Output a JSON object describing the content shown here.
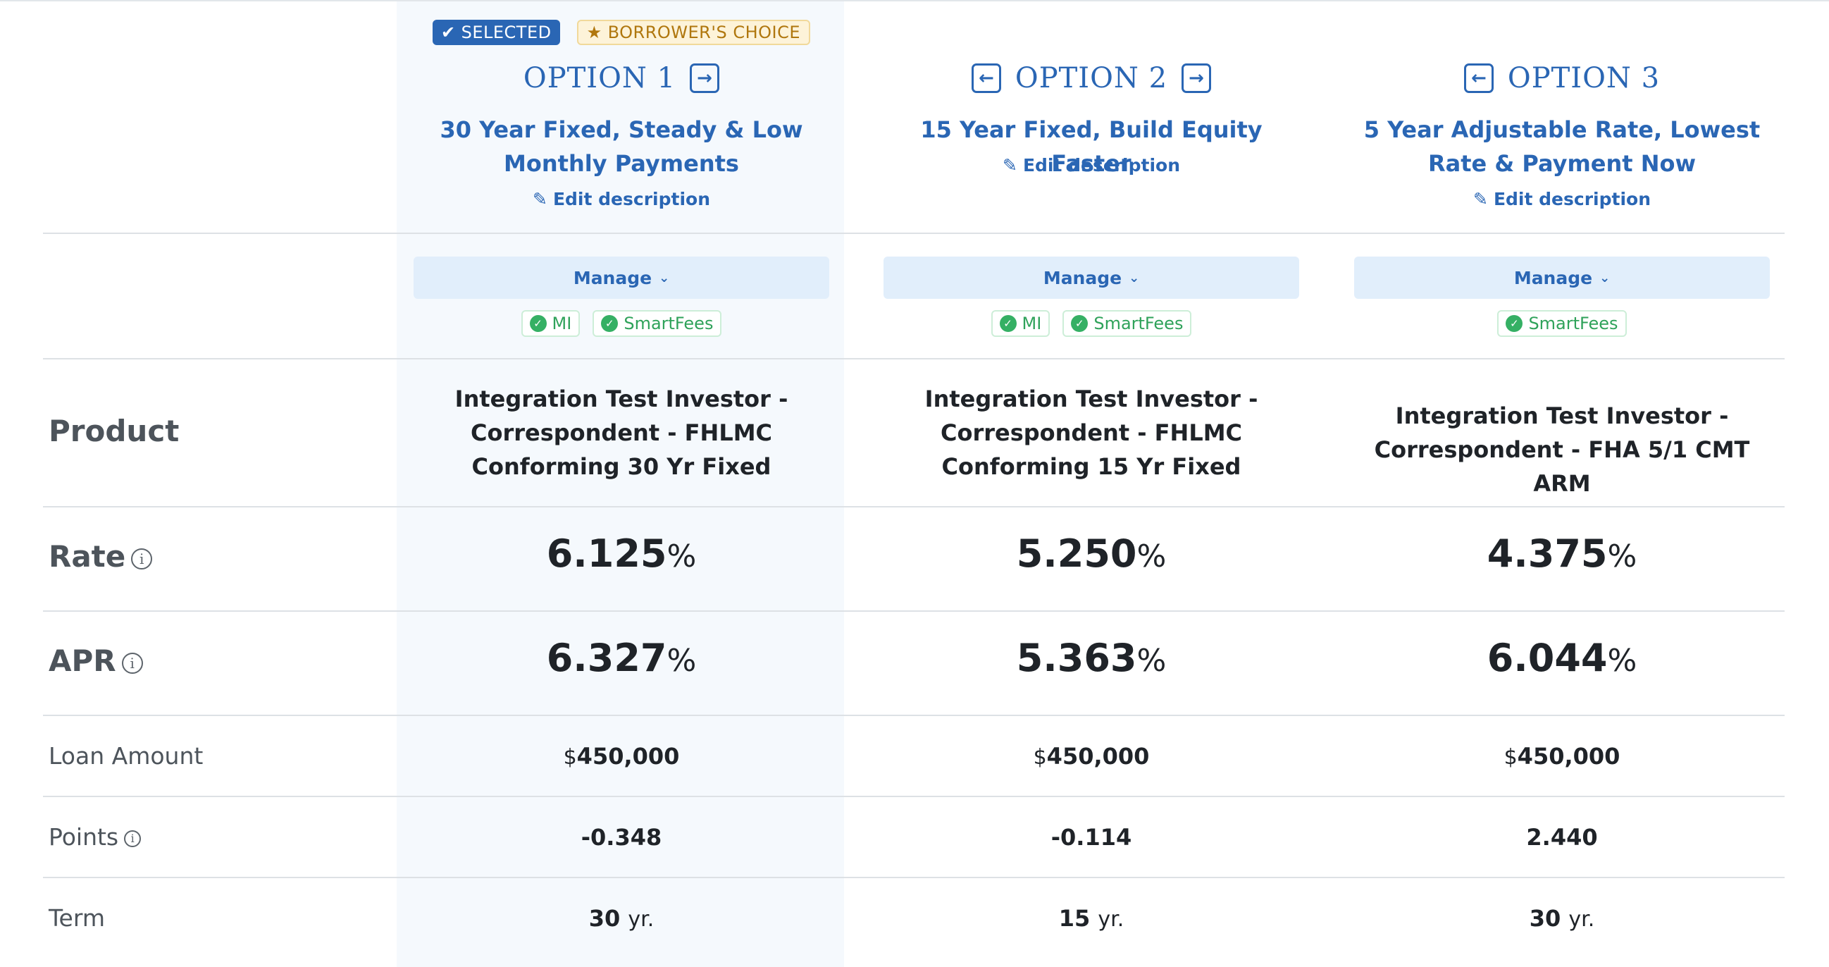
{
  "badges": {
    "selected_icon": "check-icon",
    "selected_label": "SELECTED",
    "choice_icon": "star-icon",
    "choice_label": "BORROWER'S CHOICE"
  },
  "row_labels": {
    "product": "Product",
    "rate": "Rate",
    "apr": "APR",
    "loan_amount": "Loan Amount",
    "points": "Points",
    "term": "Term",
    "info_icon": "info-icon"
  },
  "options": [
    {
      "title": "OPTION 1",
      "description": "30 Year Fixed, Steady & Low Monthly Payments",
      "edit_label": "Edit description",
      "manage_label": "Manage",
      "tags": [
        "MI",
        "SmartFees"
      ],
      "product": "Integration Test Investor - Correspondent - FHLMC Conforming 30 Yr Fixed",
      "rate": "6.125",
      "apr": "6.327",
      "percent": "%",
      "currency": "$",
      "loan_amount": "450,000",
      "points": "-0.348",
      "term": "30",
      "term_unit": "yr.",
      "selected": true
    },
    {
      "title": "OPTION 2",
      "description": "15 Year Fixed, Build Equity Faster",
      "edit_label": "Edit description",
      "manage_label": "Manage",
      "tags": [
        "MI",
        "SmartFees"
      ],
      "product": "Integration Test Investor - Correspondent - FHLMC Conforming 15 Yr Fixed",
      "rate": "5.250",
      "apr": "5.363",
      "percent": "%",
      "currency": "$",
      "loan_amount": "450,000",
      "points": "-0.114",
      "term": "15",
      "term_unit": "yr.",
      "selected": false
    },
    {
      "title": "OPTION 3",
      "description": "5 Year Adjustable Rate, Lowest Rate & Payment Now",
      "edit_label": "Edit description",
      "manage_label": "Manage",
      "tags": [
        "SmartFees"
      ],
      "product": "Integration Test Investor - Correspondent - FHA 5/1 CMT ARM",
      "rate": "4.375",
      "apr": "6.044",
      "percent": "%",
      "currency": "$",
      "loan_amount": "450,000",
      "points": "2.440",
      "term": "30",
      "term_unit": "yr.",
      "selected": false
    }
  ],
  "colors": {
    "accent": "#2a66b4",
    "selected_column_bg": "#f5f9fd",
    "tag_green": "#35b064",
    "choice_badge": "#b0770e"
  }
}
